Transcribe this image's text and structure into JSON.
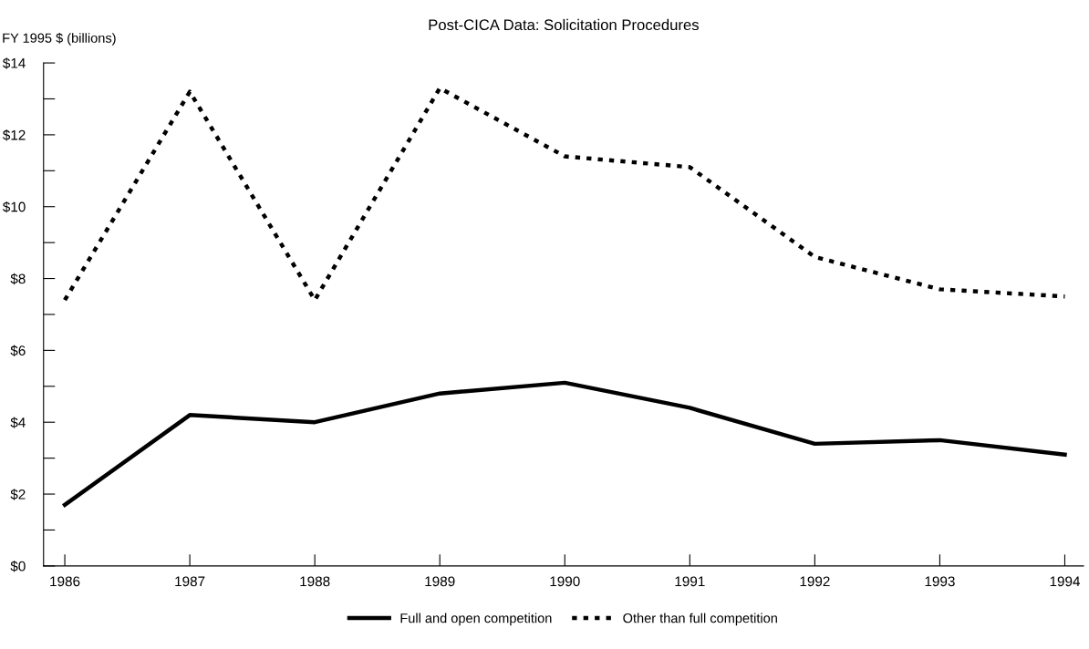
{
  "chart_data": {
    "type": "line",
    "title": "Post-CICA Data: Solicitation Procedures",
    "ylabel": "FY 1995 $ (billions)",
    "categories": [
      "1986",
      "1987",
      "1988",
      "1989",
      "1990",
      "1991",
      "1992",
      "1993",
      "1994"
    ],
    "series": [
      {
        "name": "Full and open competition",
        "color": "#000000",
        "line_style": "solid",
        "values": [
          1.7,
          4.2,
          4.0,
          4.8,
          5.1,
          4.4,
          3.4,
          3.5,
          3.1
        ]
      },
      {
        "name": "Other than full competition",
        "color": "#000000",
        "line_style": "dotted",
        "values": [
          7.4,
          13.2,
          7.4,
          13.3,
          11.4,
          11.1,
          8.6,
          7.7,
          7.5
        ]
      }
    ],
    "ylim": [
      0,
      14
    ],
    "yticks": [
      {
        "value": 0,
        "label": "$0"
      },
      {
        "value": 1,
        "label": null
      },
      {
        "value": 2,
        "label": "$2"
      },
      {
        "value": 3,
        "label": null
      },
      {
        "value": 4,
        "label": "$4"
      },
      {
        "value": 5,
        "label": null
      },
      {
        "value": 6,
        "label": "$6"
      },
      {
        "value": 7,
        "label": null
      },
      {
        "value": 8,
        "label": "$8"
      },
      {
        "value": 9,
        "label": null
      },
      {
        "value": 10,
        "label": "$10"
      },
      {
        "value": 11,
        "label": null
      },
      {
        "value": 12,
        "label": "$12"
      },
      {
        "value": 13,
        "label": null
      },
      {
        "value": 14,
        "label": "$14"
      }
    ],
    "grid": false,
    "legend": "bottom",
    "marker": "none"
  }
}
